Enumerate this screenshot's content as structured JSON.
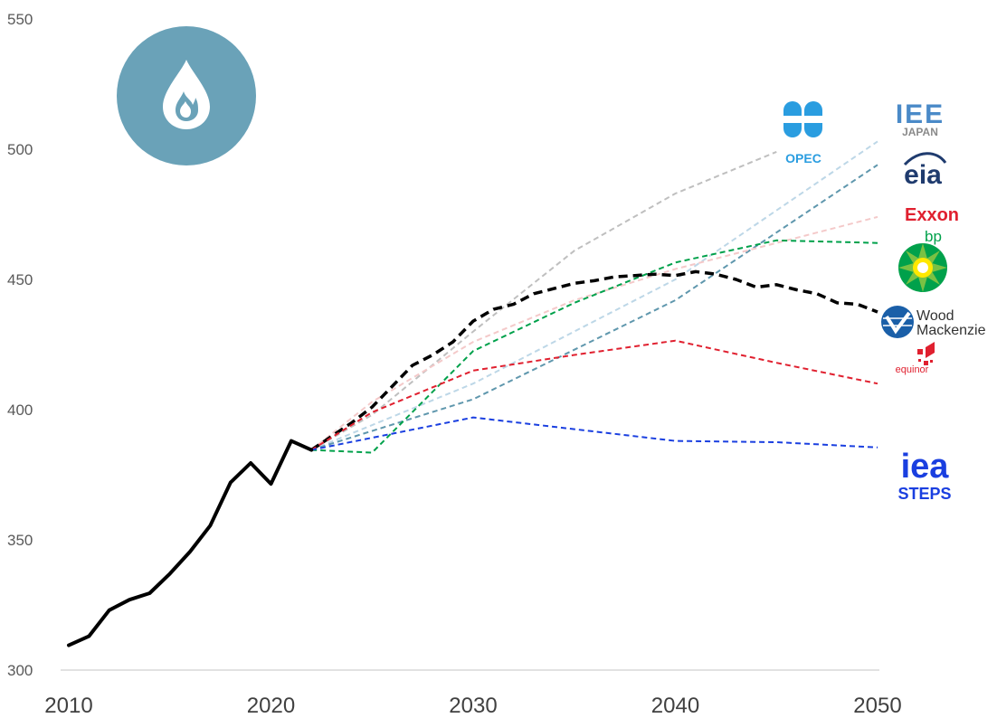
{
  "chart_data": {
    "type": "line",
    "title": "",
    "xlabel": "",
    "ylabel": "",
    "xlim": [
      2010,
      2050
    ],
    "ylim": [
      300,
      550
    ],
    "yticks": [
      "300",
      "350",
      "400",
      "450",
      "500",
      "550"
    ],
    "xticks": [
      "2010",
      "2020",
      "2030",
      "2040",
      "2050"
    ],
    "historical": {
      "color": "#000000",
      "x": [
        2010,
        2011,
        2012,
        2013,
        2014,
        2015,
        2016,
        2017,
        2018,
        2019,
        2020,
        2021,
        2022
      ],
      "y": [
        309.5,
        313,
        323,
        327,
        329.5,
        337,
        345.5,
        355.5,
        372,
        379.5,
        371.5,
        388,
        384.5
      ]
    },
    "series": [
      {
        "color": "#bfbfbf",
        "x": [
          2022,
          2025,
          2030,
          2035,
          2040,
          2045
        ],
        "y": [
          384.5,
          398,
          430,
          461,
          483,
          499
        ]
      },
      {
        "color": "#bdd7e7",
        "x": [
          2022,
          2030,
          2040,
          2050
        ],
        "y": [
          384.5,
          410,
          450,
          503
        ]
      },
      {
        "color": "#5f97ad",
        "x": [
          2022,
          2030,
          2040,
          2050
        ],
        "y": [
          384.5,
          404,
          442,
          494
        ]
      },
      {
        "color": "#f4c9c9",
        "x": [
          2022,
          2025,
          2030,
          2035,
          2040,
          2045,
          2050
        ],
        "y": [
          384.5,
          403,
          426,
          442,
          454,
          464,
          474
        ]
      },
      {
        "color": "#00a14b",
        "x": [
          2022,
          2025,
          2030,
          2035,
          2040,
          2045,
          2050
        ],
        "y": [
          384.5,
          383.5,
          422.5,
          441,
          456.5,
          465,
          464
        ]
      },
      {
        "color": "#000000",
        "style": "bold",
        "x": [
          2022,
          2024,
          2025,
          2026,
          2027,
          2028,
          2029,
          2030,
          2031,
          2032,
          2033,
          2034,
          2035,
          2036,
          2037,
          2038,
          2039,
          2040,
          2041,
          2042,
          2043,
          2044,
          2045,
          2046,
          2047,
          2048,
          2049,
          2050
        ],
        "y": [
          384.5,
          395,
          401,
          409,
          417,
          421,
          426,
          434,
          438.5,
          440.5,
          444.5,
          446.5,
          448.5,
          449.5,
          451,
          451.5,
          452,
          451.5,
          453,
          452,
          450,
          447,
          448,
          446,
          444.5,
          441,
          440.5,
          437.5
        ]
      },
      {
        "color": "#e0202f",
        "x": [
          2022,
          2025,
          2030,
          2035,
          2040,
          2045,
          2050
        ],
        "y": [
          384.5,
          399,
          415,
          421,
          426.5,
          418,
          410
        ]
      },
      {
        "color": "#1a3fe0",
        "x": [
          2022,
          2030,
          2040,
          2045,
          2050
        ],
        "y": [
          384.5,
          397,
          388,
          387.5,
          385.5
        ]
      }
    ],
    "logos": [
      {
        "id": "opec",
        "name": "OPEC",
        "color": "#2a9de0"
      },
      {
        "id": "iee",
        "name": "IEE",
        "sub": "JAPAN",
        "color": "#4a8ac8"
      },
      {
        "id": "eia",
        "name": "eia",
        "color": "#1f3b6e"
      },
      {
        "id": "exxon",
        "name": "Exxon",
        "color": "#e0202f"
      },
      {
        "id": "bp",
        "name": "bp",
        "color": "#00a14b"
      },
      {
        "id": "wood",
        "name": "Wood",
        "name2": "Mackenzie",
        "color": "#1a5fa8"
      },
      {
        "id": "equinor",
        "name": "equinor",
        "color": "#e0202f"
      },
      {
        "id": "iea",
        "name": "iea",
        "sub": "STEPS",
        "color": "#1a3fe0"
      }
    ],
    "badge": {
      "icon": "flame-drop-icon",
      "color": "#6aa2b8"
    }
  }
}
